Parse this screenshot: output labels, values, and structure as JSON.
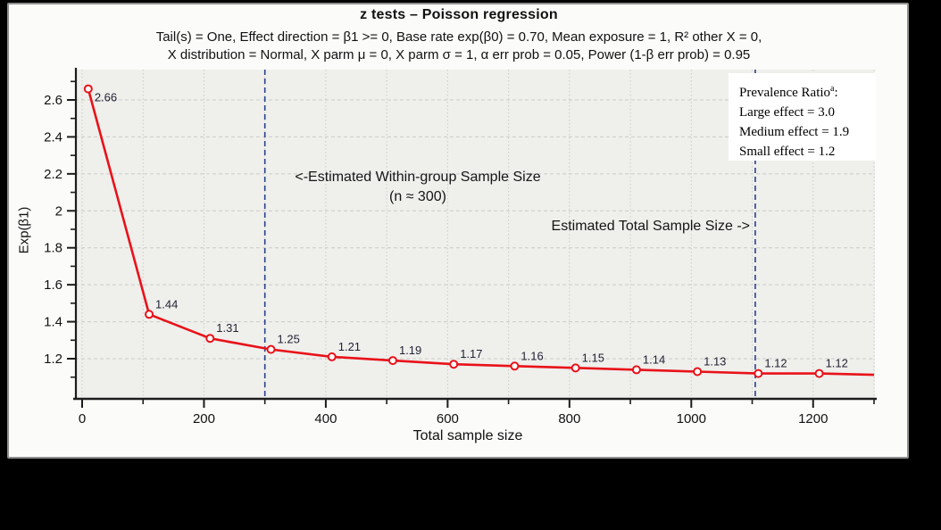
{
  "header": {
    "title": "z tests – Poisson regression",
    "subtitle_line1": "Tail(s) = One, Effect direction = β1 >= 0, Base rate exp(β0) = 0.70, Mean exposure = 1, R² other X = 0,",
    "subtitle_line2": "X distribution = Normal, X parm μ = 0, X parm σ = 1, α err prob = 0.05, Power (1-β err prob) = 0.95"
  },
  "chart_data": {
    "type": "line",
    "title": "z tests – Poisson regression",
    "xlabel": "Total sample size",
    "ylabel": "Exp(β1)",
    "xlim": [
      -12,
      1301
    ],
    "ylim": [
      0.99,
      2.76
    ],
    "x": [
      10,
      110,
      210,
      310,
      410,
      510,
      610,
      710,
      810,
      910,
      1010,
      1110,
      1210
    ],
    "y": [
      2.66,
      1.44,
      1.31,
      1.25,
      1.21,
      1.19,
      1.17,
      1.16,
      1.15,
      1.14,
      1.13,
      1.12,
      1.12
    ],
    "point_labels": [
      "2.66",
      "1.44",
      "1.31",
      "1.25",
      "1.21",
      "1.19",
      "1.17",
      "1.16",
      "1.15",
      "1.14",
      "1.13",
      "1.12",
      "1.12"
    ],
    "line_extension": {
      "x": 1300,
      "y": 1.113
    },
    "xticks_major": [
      0,
      200,
      400,
      600,
      800,
      1000,
      1200
    ],
    "xtick_labels": [
      "0",
      "200",
      "400",
      "600",
      "800",
      "1000",
      "1200"
    ],
    "xticks_minor": [
      100,
      300,
      500,
      700,
      900,
      1100,
      1300
    ],
    "yticks_major": [
      1.2,
      1.4,
      1.6,
      1.8,
      2.0,
      2.2,
      2.4,
      2.6
    ],
    "ytick_labels": [
      "1.2",
      "1.4",
      "1.6",
      "1.8",
      "2",
      "2.2",
      "2.4",
      "2.6"
    ],
    "yticks_minor": [
      1.1,
      1.3,
      1.5,
      1.7,
      1.9,
      2.1,
      2.3,
      2.5,
      2.7
    ],
    "grid_x": [
      0,
      100,
      200,
      300,
      400,
      500,
      600,
      700,
      800,
      900,
      1000,
      1100,
      1200,
      1300
    ],
    "grid_y": [
      1.2,
      1.4,
      1.6,
      1.8,
      2.0,
      2.2,
      2.4,
      2.6
    ],
    "grid_on": true,
    "legend_position": "top-right",
    "colors": {
      "series": "#e81219",
      "marker_fill": "#ffffff",
      "threshold_line": "#27418c",
      "grid": "#cbcbc8",
      "plot_bg": "#efefec",
      "axis": "#1c1c1c",
      "point_label": "#232336"
    }
  },
  "annotations": {
    "within_group": {
      "x": 300,
      "label_line1": "<-Estimated Within-group Sample Size",
      "label_line2": "(n ≈ 300)"
    },
    "total": {
      "x": 1105,
      "label": "Estimated Total Sample Size ->"
    }
  },
  "legend": {
    "title_text": "Prevalence Ratio",
    "title_sup": "a",
    "title_suffix": ":",
    "items": [
      {
        "label": "Large effect = 3.0"
      },
      {
        "label": "Medium effect = 1.9"
      },
      {
        "label": "Small effect = 1.2"
      }
    ]
  }
}
